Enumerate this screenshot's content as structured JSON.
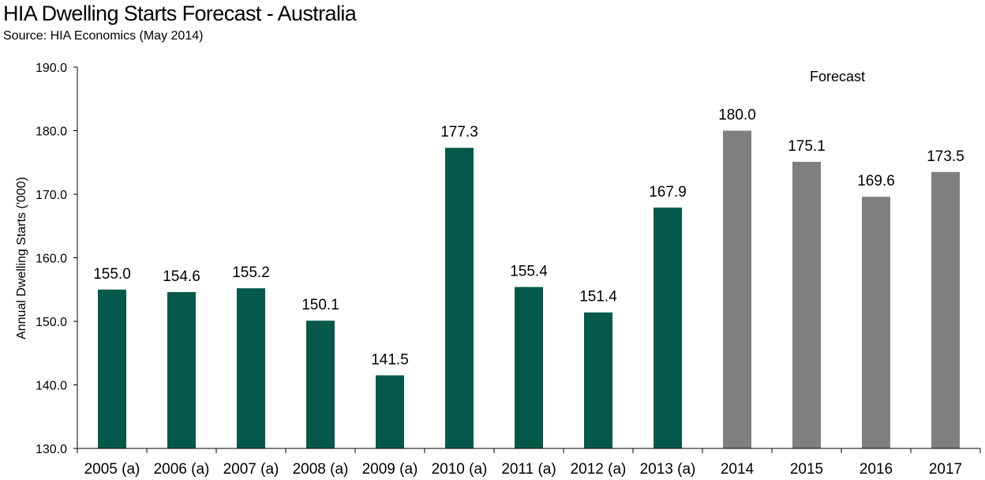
{
  "chart_data": {
    "type": "bar",
    "title": "HIA Dwelling Starts Forecast - Australia",
    "subtitle": "Source: HIA Economics (May 2014)",
    "ylabel": "Annual Dwelling Starts ('000)",
    "xlabel": "",
    "ylim": [
      130,
      190
    ],
    "yticks": [
      "130.0",
      "140.0",
      "150.0",
      "160.0",
      "170.0",
      "180.0",
      "190.0"
    ],
    "categories": [
      "2005 (a)",
      "2006 (a)",
      "2007 (a)",
      "2008 (a)",
      "2009 (a)",
      "2010 (a)",
      "2011 (a)",
      "2012 (a)",
      "2013 (a)",
      "2014",
      "2015",
      "2016",
      "2017"
    ],
    "values": [
      155.0,
      154.6,
      155.2,
      150.1,
      141.5,
      177.3,
      155.4,
      151.4,
      167.9,
      180.0,
      175.1,
      169.6,
      173.5
    ],
    "data_labels": [
      "155.0",
      "154.6",
      "155.2",
      "150.1",
      "141.5",
      "177.3",
      "155.4",
      "151.4",
      "167.9",
      "180.0",
      "175.1",
      "169.6",
      "173.5"
    ],
    "forecast": [
      false,
      false,
      false,
      false,
      false,
      false,
      false,
      false,
      false,
      true,
      true,
      true,
      true
    ],
    "annotation": "Forecast",
    "grid": false,
    "colors": {
      "actual": "#04594A",
      "forecast": "#7F7F7F"
    }
  }
}
